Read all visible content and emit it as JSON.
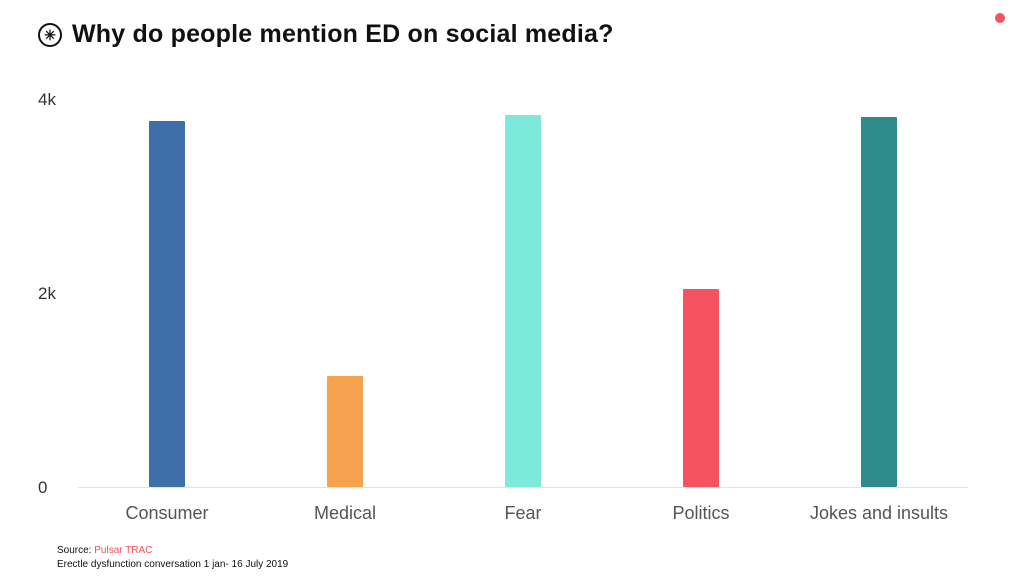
{
  "header": {
    "logo_glyph": "✳",
    "title": "Why do people mention ED on social media?"
  },
  "decoration": {
    "corner_dot_color": "#f4525e"
  },
  "chart_data": {
    "type": "bar",
    "title": "Why do people mention ED on social media?",
    "categories": [
      "Consumer",
      "Medical",
      "Fear",
      "Politics",
      "Jokes and insults"
    ],
    "values": [
      3780,
      1150,
      3840,
      2050,
      3820
    ],
    "bar_colors": [
      "#3e6fa9",
      "#f5a14d",
      "#7de9db",
      "#f4535f",
      "#2e8b8b"
    ],
    "xlabel": "",
    "ylabel": "",
    "ylim": [
      0,
      4000
    ],
    "yticks": [
      {
        "label": "4k",
        "value": 4000
      },
      {
        "label": "2k",
        "value": 2000
      },
      {
        "label": "0",
        "value": 0
      }
    ],
    "grid": false,
    "legend": false,
    "baseline_color": "#e2e2e2"
  },
  "source": {
    "prefix": "Source: ",
    "attribution": "Pulsar TRAC",
    "attribution_color": "#f4525e",
    "line2": "Erectle dysfunction conversation 1 jan- 16 July 2019"
  }
}
